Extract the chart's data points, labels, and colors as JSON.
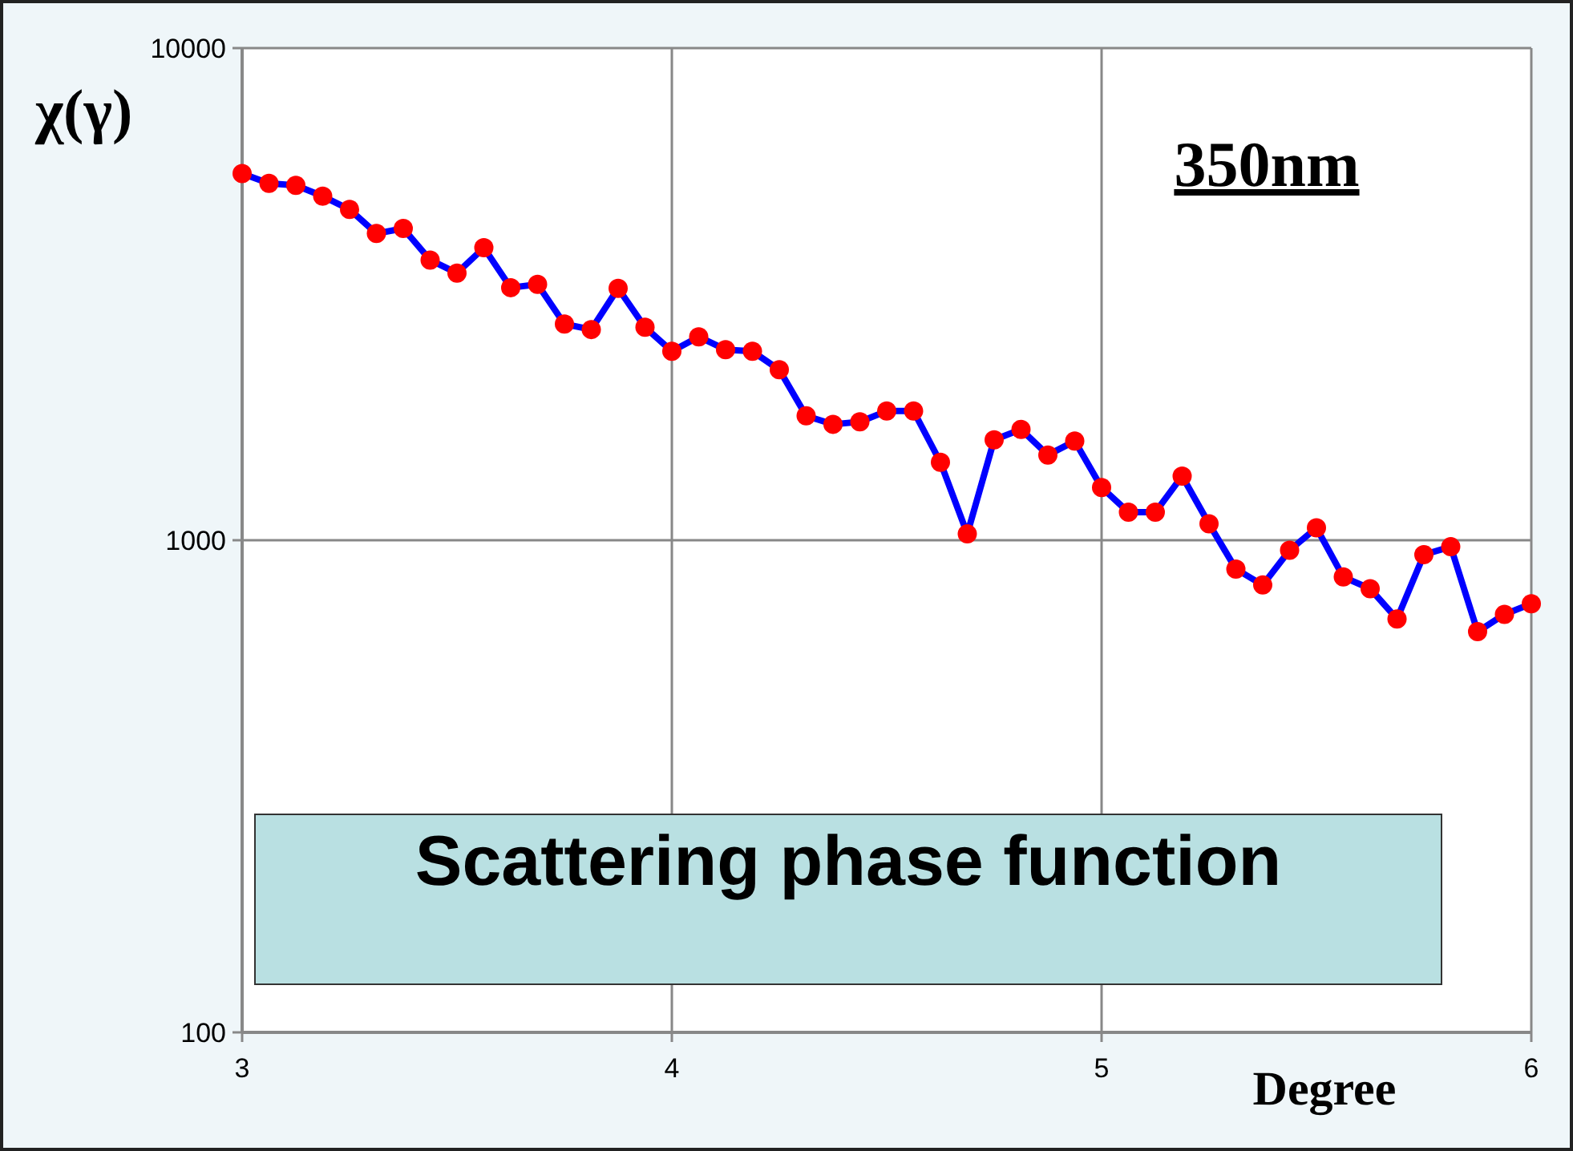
{
  "chart_data": {
    "type": "line",
    "title": "350nm",
    "ylabel": "χ(γ)",
    "xlabel": "Degree",
    "annotations": [
      "Scattering phase function"
    ],
    "log": "y",
    "grid": true,
    "marker": "circle",
    "line_style": "solid",
    "xlim": [
      3,
      6
    ],
    "xticks": [
      3,
      4,
      5,
      6
    ],
    "ylim": [
      100,
      10000
    ],
    "yticks": [
      100,
      1000,
      10000
    ],
    "x": [
      3,
      3.0625,
      3.125,
      3.1875,
      3.25,
      3.3125,
      3.375,
      3.4375,
      3.5,
      3.5625,
      3.625,
      3.6875,
      3.75,
      3.8125,
      3.875,
      3.9375,
      4,
      4.0625,
      4.125,
      4.1875,
      4.25,
      4.3125,
      4.375,
      4.4375,
      4.5,
      4.5625,
      4.625,
      4.6875,
      4.75,
      4.8125,
      4.875,
      4.9375,
      5,
      5.0625,
      5.125,
      5.1875,
      5.25,
      5.3125,
      5.375,
      5.4375,
      5.5,
      5.5625,
      5.625,
      5.6875,
      5.75,
      5.8125,
      5.875,
      5.9375,
      6
    ],
    "series": [
      {
        "color": "#0000ff",
        "values": [
          5560,
          5310,
          5260,
          5000,
          4700,
          4200,
          4300,
          3710,
          3490,
          3930,
          3260,
          3310,
          2750,
          2680,
          3250,
          2710,
          2420,
          2590,
          2440,
          2420,
          2220,
          1790,
          1720,
          1740,
          1830,
          1830,
          1440,
          1030,
          1600,
          1680,
          1490,
          1590,
          1280,
          1140,
          1140,
          1350,
          1080,
          874,
          811,
          954,
          1060,
          842,
          797,
          692,
          935,
          970,
          652,
          707,
          743
        ]
      }
    ]
  }
}
